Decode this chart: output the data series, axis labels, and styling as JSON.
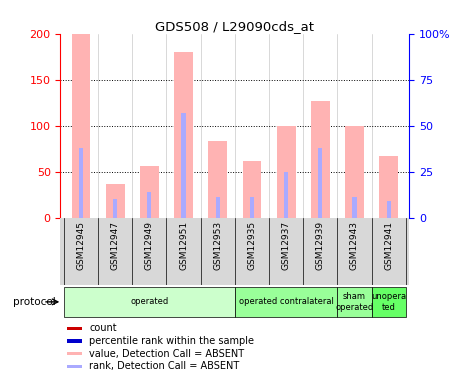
{
  "title": "GDS508 / L29090cds_at",
  "samples": [
    "GSM12945",
    "GSM12947",
    "GSM12949",
    "GSM12951",
    "GSM12953",
    "GSM12935",
    "GSM12937",
    "GSM12939",
    "GSM12943",
    "GSM12941"
  ],
  "value_absent": [
    200,
    36,
    56,
    180,
    83,
    62,
    100,
    127,
    100,
    67
  ],
  "rank_absent": [
    38,
    10,
    14,
    57,
    11,
    11,
    25,
    38,
    11,
    9
  ],
  "left_ylim": [
    0,
    200
  ],
  "right_ylim": [
    0,
    100
  ],
  "left_yticks": [
    0,
    50,
    100,
    150,
    200
  ],
  "right_yticks": [
    0,
    25,
    50,
    75,
    100
  ],
  "right_yticklabels": [
    "0",
    "25",
    "50",
    "75",
    "100%"
  ],
  "bar_width": 0.55,
  "rank_bar_width": 0.12,
  "bar_color_absent": "#ffb3b3",
  "rank_color_absent": "#aaaaff",
  "count_color": "#cc0000",
  "percentile_color": "#0000cc",
  "protocol_groups": [
    {
      "label": "operated",
      "start": 0,
      "end": 5,
      "color": "#ccffcc"
    },
    {
      "label": "operated contralateral",
      "start": 5,
      "end": 8,
      "color": "#99ff99"
    },
    {
      "label": "sham\noperated",
      "start": 8,
      "end": 9,
      "color": "#99ff99"
    },
    {
      "label": "unopera\nted",
      "start": 9,
      "end": 10,
      "color": "#66ff66"
    }
  ],
  "protocol_label": "protocol",
  "legend_items": [
    {
      "color": "#cc0000",
      "label": "count"
    },
    {
      "color": "#0000cc",
      "label": "percentile rank within the sample"
    },
    {
      "color": "#ffb3b3",
      "label": "value, Detection Call = ABSENT"
    },
    {
      "color": "#aaaaff",
      "label": "rank, Detection Call = ABSENT"
    }
  ],
  "figsize": [
    4.65,
    3.75
  ],
  "dpi": 100
}
